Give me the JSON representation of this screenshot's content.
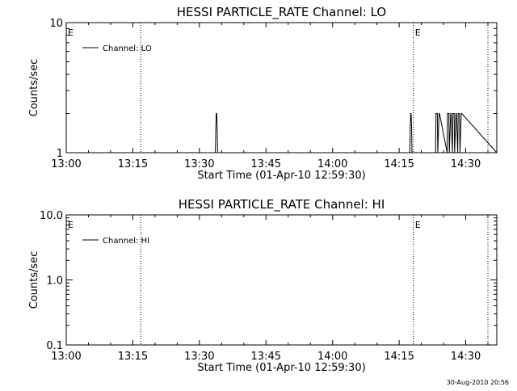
{
  "footer": {
    "timestamp": "30-Aug-2010 20:56"
  },
  "chart_data": [
    {
      "type": "line",
      "title": "HESSI PARTICLE_RATE Channel: LO",
      "xlabel": "Start Time (01-Apr-10 12:59:30)",
      "ylabel": "Counts/sec",
      "yscale": "log",
      "ylim": [
        1,
        10
      ],
      "xlim": [
        0,
        97
      ],
      "x_ticks": [
        {
          "value": 0,
          "label": "13:00"
        },
        {
          "value": 15,
          "label": "13:15"
        },
        {
          "value": 30,
          "label": "13:30"
        },
        {
          "value": 45,
          "label": "13:45"
        },
        {
          "value": 60,
          "label": "14:00"
        },
        {
          "value": 75,
          "label": "14:15"
        },
        {
          "value": 90,
          "label": "14:30"
        }
      ],
      "y_ticks": [
        {
          "value": 1,
          "label": "1"
        },
        {
          "value": 10,
          "label": "10"
        }
      ],
      "vlines": [
        {
          "x": 16.8,
          "label": ""
        },
        {
          "x": 78.2,
          "label": "E"
        },
        {
          "x": 95.0,
          "label": ""
        }
      ],
      "left_marker": "E",
      "series": [
        {
          "name": "Channel: LO",
          "x": [
            0,
            33.6,
            33.7,
            33.8,
            33.9,
            34.0,
            34.1,
            77.4,
            77.5,
            77.6,
            77.7,
            77.8,
            77.9,
            83.2,
            83.3,
            83.6,
            83.7,
            84.0,
            84.1,
            85.8,
            85.9,
            86.2,
            86.3,
            86.6,
            86.7,
            87.0,
            87.1,
            87.4,
            87.5,
            87.8,
            87.9,
            88.2,
            88.3,
            88.6,
            88.7,
            89.0,
            89.1,
            97
          ],
          "y": [
            1,
            1,
            1.6,
            2,
            2,
            1.6,
            1,
            1,
            1.6,
            2,
            2,
            1.6,
            1,
            1,
            2,
            2,
            1,
            2,
            2,
            1,
            2,
            2,
            1,
            2,
            2,
            1,
            2,
            2,
            1,
            2,
            2,
            1,
            2,
            2,
            1,
            2,
            2,
            1
          ]
        }
      ]
    },
    {
      "type": "line",
      "title": "HESSI PARTICLE_RATE Channel: HI",
      "xlabel": "Start Time (01-Apr-10 12:59:30)",
      "ylabel": "Counts/sec",
      "yscale": "log",
      "ylim": [
        0.1,
        10
      ],
      "xlim": [
        0,
        97
      ],
      "x_ticks": [
        {
          "value": 0,
          "label": "13:00"
        },
        {
          "value": 15,
          "label": "13:15"
        },
        {
          "value": 30,
          "label": "13:30"
        },
        {
          "value": 45,
          "label": "13:45"
        },
        {
          "value": 60,
          "label": "14:00"
        },
        {
          "value": 75,
          "label": "14:15"
        },
        {
          "value": 90,
          "label": "14:30"
        }
      ],
      "y_ticks": [
        {
          "value": 0.1,
          "label": "0.1"
        },
        {
          "value": 1,
          "label": "1.0"
        },
        {
          "value": 10,
          "label": "10.0"
        }
      ],
      "vlines": [
        {
          "x": 16.8,
          "label": ""
        },
        {
          "x": 78.2,
          "label": "E"
        },
        {
          "x": 95.0,
          "label": ""
        }
      ],
      "left_marker": "E",
      "series": [
        {
          "name": "Channel: HI",
          "x": [],
          "y": []
        }
      ]
    }
  ]
}
